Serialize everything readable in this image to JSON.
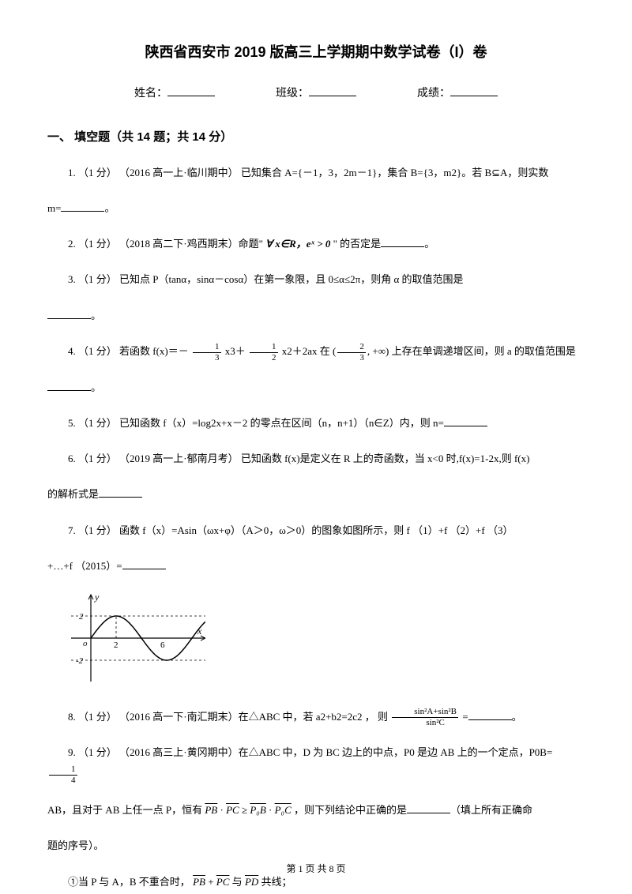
{
  "title": "陕西省西安市 2019 版高三上学期期中数学试卷（I）卷",
  "info": {
    "name_label": "姓名：",
    "class_label": "班级：",
    "score_label": "成绩："
  },
  "section": {
    "header": "一、 填空题（共 14 题；共 14 分）"
  },
  "questions": {
    "q1": {
      "pre": "1. （1 分） （2016 高一上·临川期中） 已知集合 A={－1，3，2m－1}，集合 B={3，m2}。若 B⊆A，则实数",
      "line2": "m=",
      "end": "。"
    },
    "q2": {
      "pre": "2. （1 分） （2018 高二下·鸡西期末）命题\" ",
      "math": "∀ x∈R，eˣ > 0",
      "post": " \" 的否定是",
      "end": "。"
    },
    "q3": {
      "pre": "3.   （1 分）   已知点 P（tanα，sinα－cosα）在第一象限，且 0≤α≤2π，则角 α 的取值范围是",
      "end": "。"
    },
    "q4": {
      "pre": "4. （1 分） 若函数 f(x)＝－ ",
      "mid1": " x3＋ ",
      "mid2": " x2＋2ax 在 ",
      "post": " 上存在单调递增区间，则 a 的取值范围是",
      "end": "。",
      "f1n": "1",
      "f1d": "3",
      "f2n": "1",
      "f2d": "2",
      "f3n": "2",
      "f3d": "3",
      "interval_post": ", +∞)"
    },
    "q5": {
      "pre": "5. （1 分） 已知函数 f（x）=log2x+x－2 的零点在区间（n，n+1）（n∈Z）内，则 n="
    },
    "q6": {
      "pre": "6. （1 分） （2019 高一上·郁南月考） 已知函数 f(x)是定义在 R 上的奇函数，当 x<0 时,f(x)=1-2x,则 f(x)",
      "line2": "的解析式是"
    },
    "q7": {
      "pre": "7. （1 分） 函数 f（x）=Asin（ωx+φ）（A＞0，ω＞0）的图象如图所示，则 f （1）+f （2）+f （3）",
      "line2": "+…+f （2015）="
    },
    "graph": {
      "width": 170,
      "height": 120,
      "y_top": "2",
      "y_bot": "-2",
      "x_mid": "2",
      "x_right": "6",
      "x_label": "x",
      "y_label": "y",
      "axis_color": "#000000",
      "curve_color": "#000000",
      "dash_color": "#000000"
    },
    "q8": {
      "pre": "8. （1 分） （2016 高一下·南汇期末）在△ABC 中，若 a2+b2=2c2 ， 则 ",
      "post": " =",
      "end": "。",
      "frac_num": "sin²A+sin²B",
      "frac_den": "sin²C"
    },
    "q9": {
      "pre": "9. （1 分） （2016 高三上·黄冈期中）在△ABC 中，D 为 BC 边上的中点，P0 是边 AB 上的一个定点，P0B= ",
      "f1n": "1",
      "f1d": "4",
      "line2a": "AB，且对于 AB 上任一点 P，恒有 ",
      "pb": "PB",
      "pc": "PC",
      "dot": " · ",
      "ge": " ≥ ",
      "p0b": "P₀B",
      "p0c": "P₀C",
      "line2b": " ，则下列结论中正确的是",
      "line2c": "（填上所有正确命",
      "line3": "题的序号）。"
    },
    "q9opt": {
      "pre": "①当 P 与 A，B 不重合时， ",
      "pb": "PB",
      "plus": " + ",
      "pc": "PC",
      "and": " 与 ",
      "pd": "PD",
      "post": " 共线；"
    }
  },
  "footer": "第 1 页 共 8 页"
}
